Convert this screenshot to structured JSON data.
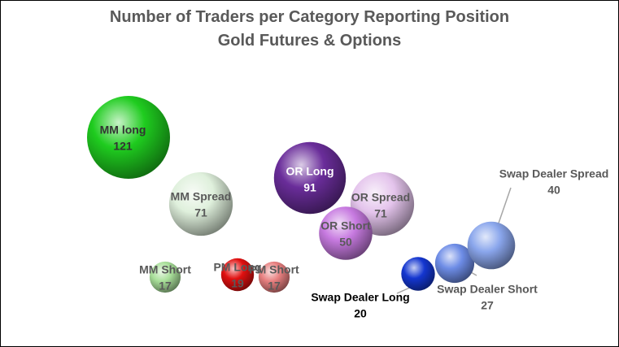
{
  "chart_data": {
    "type": "bubble",
    "title": "Number of Traders per Category Reporting Position",
    "subtitle": "Gold Futures & Options",
    "grid": false,
    "legend": "none",
    "series": [
      {
        "label": "MM long",
        "value": 121,
        "color": "#1fcc1f"
      },
      {
        "label": "MM Spread",
        "value": 71,
        "color": "#dff0dc"
      },
      {
        "label": "MM Short",
        "value": 17,
        "color": "#a9e09a"
      },
      {
        "label": "PM Long",
        "value": 19,
        "color": "#e01010"
      },
      {
        "label": "PM Short",
        "value": 17,
        "color": "#e88080"
      },
      {
        "label": "OR Long",
        "value": 91,
        "color": "#6a2d9a"
      },
      {
        "label": "OR Spread",
        "value": 71,
        "color": "#e4c4ec"
      },
      {
        "label": "OR Short",
        "value": 50,
        "color": "#c77ae0"
      },
      {
        "label": "Swap Dealer Long",
        "value": 20,
        "color": "#1436d0"
      },
      {
        "label": "Swap Dealer Short",
        "value": 27,
        "color": "#6d8ce6"
      },
      {
        "label": "Swap Dealer Spread",
        "value": 40,
        "color": "#8aa6ec"
      }
    ]
  }
}
